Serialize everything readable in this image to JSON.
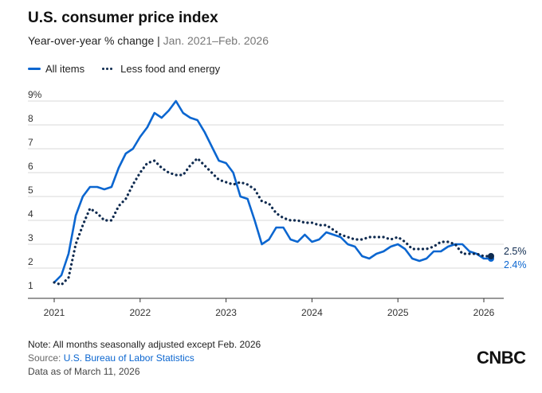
{
  "header": {
    "title": "U.S. consumer price index",
    "subtitle_main": "Year-over-year % change |",
    "subtitle_range": "Jan. 2021–Feb. 2026"
  },
  "legend": {
    "all_items": "All items",
    "core": "Less food and energy"
  },
  "colors": {
    "all_items": "#0b66d0",
    "core": "#0e2a4f",
    "grid": "#d9d9d9"
  },
  "chart_data": {
    "type": "line",
    "title": "U.S. consumer price index",
    "subtitle": "Year-over-year % change | Jan. 2021–Feb. 2026",
    "x_start": "2021-01",
    "x_end": "2026-02",
    "y_ticks": [
      "1",
      "2",
      "3",
      "4",
      "5",
      "6",
      "7",
      "8",
      "9%"
    ],
    "ylim": [
      1,
      9
    ],
    "x_ticks": [
      "2021",
      "2022",
      "2023",
      "2024",
      "2025",
      "2026"
    ],
    "grid": true,
    "legend_position": "top-left",
    "series": [
      {
        "name": "All items",
        "style": "solid",
        "values": [
          1.4,
          1.7,
          2.6,
          4.2,
          5.0,
          5.4,
          5.4,
          5.3,
          5.4,
          6.2,
          6.8,
          7.0,
          7.5,
          7.9,
          8.5,
          8.3,
          8.6,
          9.0,
          8.5,
          8.3,
          8.2,
          7.7,
          7.1,
          6.5,
          6.4,
          6.0,
          5.0,
          4.9,
          4.0,
          3.0,
          3.2,
          3.7,
          3.7,
          3.2,
          3.1,
          3.4,
          3.1,
          3.2,
          3.5,
          3.4,
          3.3,
          3.0,
          2.9,
          2.5,
          2.4,
          2.6,
          2.7,
          2.9,
          3.0,
          2.8,
          2.4,
          2.3,
          2.4,
          2.7,
          2.7,
          2.9,
          3.0,
          3.0,
          2.7,
          2.6,
          2.4,
          2.4
        ],
        "end_label": "2.4%"
      },
      {
        "name": "Less food and energy",
        "style": "dotted",
        "values": [
          1.4,
          1.3,
          1.6,
          3.0,
          3.8,
          4.5,
          4.3,
          4.0,
          4.0,
          4.6,
          4.9,
          5.5,
          6.0,
          6.4,
          6.5,
          6.2,
          6.0,
          5.9,
          5.9,
          6.3,
          6.6,
          6.3,
          6.0,
          5.7,
          5.6,
          5.5,
          5.6,
          5.5,
          5.3,
          4.8,
          4.7,
          4.3,
          4.1,
          4.0,
          4.0,
          3.9,
          3.9,
          3.8,
          3.8,
          3.6,
          3.4,
          3.3,
          3.2,
          3.2,
          3.3,
          3.3,
          3.3,
          3.2,
          3.3,
          3.1,
          2.8,
          2.8,
          2.8,
          2.9,
          3.1,
          3.1,
          3.0,
          2.6,
          2.6,
          2.6,
          2.5,
          2.5
        ],
        "end_label": "2.5%"
      }
    ]
  },
  "footer": {
    "note": "Note: All months seasonally adjusted except Feb. 2026",
    "source_prefix": "Source: ",
    "source_link": "U.S. Bureau of Labor Statistics",
    "data_as_of": "Data as of March 11, 2026"
  },
  "brand": {
    "logo": "CNBC"
  }
}
